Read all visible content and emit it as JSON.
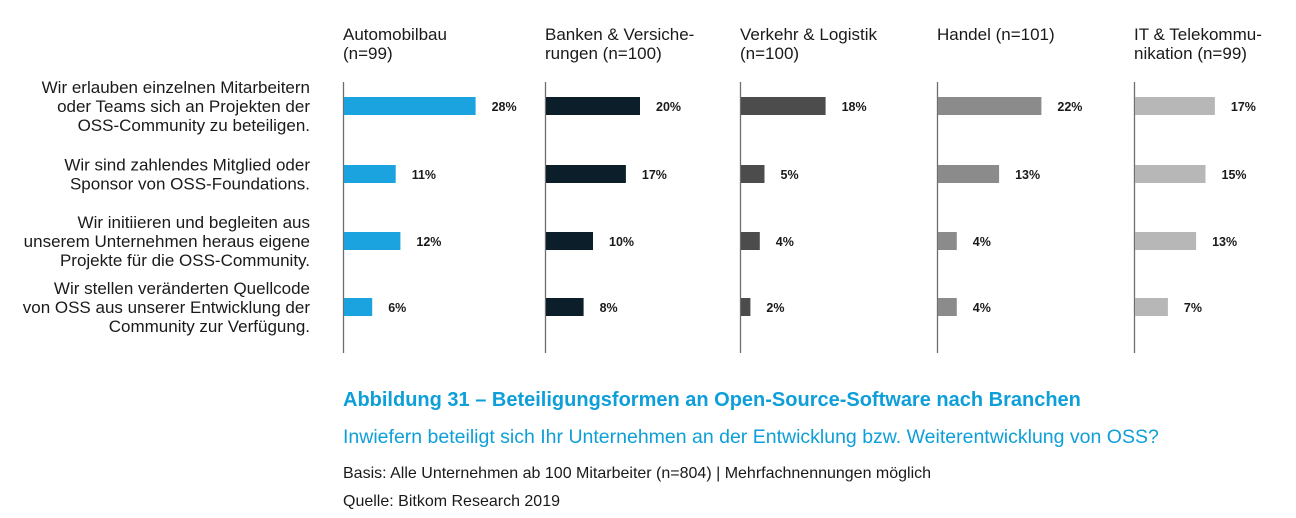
{
  "chart_data": {
    "type": "bar",
    "orientation": "horizontal",
    "panels": [
      {
        "title": [
          "Automobilbau",
          "(n=99)"
        ],
        "color": "#1aa3de",
        "values": [
          28,
          11,
          12,
          6
        ],
        "labels": [
          "28%",
          "11%",
          "12%",
          "6%"
        ]
      },
      {
        "title": [
          "Banken & Versiche-",
          "rungen (n=100)"
        ],
        "color": "#0b1e2a",
        "values": [
          20,
          17,
          10,
          8
        ],
        "labels": [
          "20%",
          "17%",
          "10%",
          "8%"
        ]
      },
      {
        "title": [
          "Verkehr & Logistik",
          "(n=100)"
        ],
        "color": "#4c4c4c",
        "values": [
          18,
          5,
          4,
          2
        ],
        "labels": [
          "18%",
          "5%",
          "4%",
          "2%"
        ]
      },
      {
        "title": [
          "Handel (n=101)"
        ],
        "color": "#8b8b8b",
        "values": [
          22,
          13,
          4,
          4
        ],
        "labels": [
          "22%",
          "13%",
          "4%",
          "4%"
        ]
      },
      {
        "title": [
          "IT & Telekommu-",
          "nikation (n=99)"
        ],
        "color": "#b7b7b7",
        "values": [
          17,
          15,
          13,
          7
        ],
        "labels": [
          "17%",
          "15%",
          "13%",
          "7%"
        ]
      }
    ],
    "categories": [
      [
        "Wir erlauben einzelnen Mitarbeitern",
        "oder Teams sich an Projekten der",
        "OSS-Community zu beteiligen."
      ],
      [
        "Wir sind zahlendes Mitglied oder",
        "Sponsor von OSS-Foundations."
      ],
      [
        "Wir initiieren und begleiten aus",
        "unserem Unternehmen heraus eigene",
        "Projekte für die OSS-Community."
      ],
      [
        "Wir stellen veränderten Quellcode",
        "von OSS aus unserer Entwicklung der",
        "Community zur Verfügung."
      ]
    ],
    "unit": "%",
    "title": "Abbildung 31 – Beteiligungsformen an Open-Source-Software nach Branchen",
    "subtitle": "Inwiefern beteiligt sich Ihr Unternehmen an der Entwicklung bzw. Weiterentwicklung von OSS?"
  },
  "caption": {
    "title": "Abbildung 31 – Beteiligungsformen an Open-Source-Software nach Branchen",
    "question": "Inwiefern beteiligt sich Ihr Unternehmen an der Entwicklung bzw. Weiterentwicklung von OSS?",
    "basis": "Basis: Alle Unternehmen ab 100 Mitarbeiter (n=804) | Mehrfachnennungen möglich",
    "source": "Quelle: Bitkom Research 2019"
  }
}
